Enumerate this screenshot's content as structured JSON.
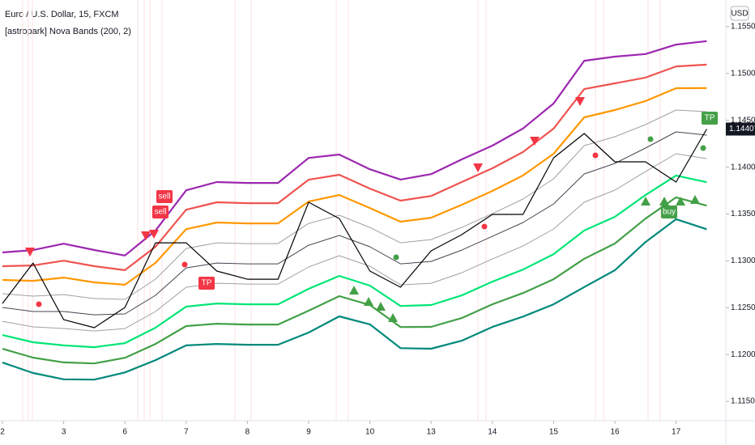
{
  "chart_data": {
    "type": "line",
    "title": "Euro / U.S. Dollar, 15, FXCM",
    "subtitle": "[astropark] Nova Bands (200, 2)",
    "currency": "USD",
    "last_price": 1.14407,
    "grid": false,
    "categories": [
      "2",
      null,
      "3",
      null,
      "6",
      null,
      "7",
      null,
      "8",
      null,
      "9",
      null,
      "10",
      null,
      "13",
      null,
      "14",
      null,
      "15",
      null,
      "16",
      null,
      "17",
      null
    ],
    "ylim": [
      1.11293,
      1.15785
    ],
    "yticks": [
      {
        "value": 1.155,
        "label": "1.15500"
      },
      {
        "value": 1.15,
        "label": "1.15000"
      },
      {
        "value": 1.145,
        "label": "1.14500"
      },
      {
        "value": 1.14,
        "label": "1.14000"
      },
      {
        "value": 1.135,
        "label": "1.13500"
      },
      {
        "value": 1.13,
        "label": "1.13000"
      },
      {
        "value": 1.125,
        "label": "1.12500"
      },
      {
        "value": 1.12,
        "label": "1.12000"
      },
      {
        "value": 1.115,
        "label": "1.11500"
      }
    ],
    "series": [
      {
        "color": "#9c27b0",
        "values": [
          1.1309,
          1.13115,
          1.13183,
          1.13116,
          1.13057,
          1.13324,
          1.13753,
          1.13841,
          1.13832,
          1.13832,
          1.14099,
          1.14135,
          1.13978,
          1.13868,
          1.13926,
          1.14083,
          1.1423,
          1.14413,
          1.1468,
          1.15136,
          1.1518,
          1.15208,
          1.15309,
          1.15346
        ]
      },
      {
        "color": "#ef5350",
        "values": [
          1.12943,
          1.12951,
          1.13002,
          1.12943,
          1.12901,
          1.13151,
          1.13546,
          1.13625,
          1.13616,
          1.13616,
          1.13866,
          1.13919,
          1.13771,
          1.13643,
          1.13693,
          1.13841,
          1.13988,
          1.14162,
          1.14412,
          1.14834,
          1.14895,
          1.14957,
          1.15076,
          1.15095
        ]
      },
      {
        "color": "#ff9800",
        "values": [
          1.12796,
          1.12787,
          1.12821,
          1.1277,
          1.12745,
          1.12978,
          1.13339,
          1.13409,
          1.134,
          1.134,
          1.13633,
          1.13703,
          1.13564,
          1.13418,
          1.1346,
          1.13599,
          1.13746,
          1.13911,
          1.14144,
          1.14532,
          1.1461,
          1.14706,
          1.14843,
          1.14844
        ]
      },
      {
        "color": "#a0a0a0",
        "values": [
          1.12649,
          1.12623,
          1.1264,
          1.12597,
          1.12589,
          1.12805,
          1.13132,
          1.13193,
          1.13184,
          1.13184,
          1.134,
          1.13487,
          1.13357,
          1.13193,
          1.13227,
          1.13357,
          1.13504,
          1.1366,
          1.13876,
          1.1423,
          1.14325,
          1.14455,
          1.1461,
          1.14593
        ]
      },
      {
        "color": "#434651",
        "values": [
          1.12502,
          1.12459,
          1.12459,
          1.12424,
          1.12433,
          1.12632,
          1.12925,
          1.12977,
          1.12968,
          1.12968,
          1.13167,
          1.13271,
          1.1315,
          1.12968,
          1.12994,
          1.13115,
          1.13262,
          1.13409,
          1.13608,
          1.13928,
          1.1404,
          1.14204,
          1.14377,
          1.14342
        ]
      },
      {
        "color": "#a0a0a0",
        "values": [
          1.12355,
          1.12295,
          1.12278,
          1.12251,
          1.12277,
          1.12459,
          1.12718,
          1.12761,
          1.12752,
          1.12752,
          1.12934,
          1.13055,
          1.12943,
          1.12743,
          1.12761,
          1.12873,
          1.1302,
          1.13158,
          1.1334,
          1.13626,
          1.13755,
          1.13953,
          1.14144,
          1.14091
        ]
      },
      {
        "color": "#00e676",
        "values": [
          1.12208,
          1.12131,
          1.12097,
          1.12078,
          1.12121,
          1.12286,
          1.12511,
          1.12545,
          1.12536,
          1.12536,
          1.12701,
          1.12839,
          1.12736,
          1.12518,
          1.12528,
          1.12631,
          1.12778,
          1.12907,
          1.13072,
          1.13324,
          1.1347,
          1.13702,
          1.13911,
          1.1384
        ]
      },
      {
        "color": "#43a047",
        "values": [
          1.12061,
          1.11967,
          1.11916,
          1.11905,
          1.11965,
          1.12113,
          1.12304,
          1.12329,
          1.1232,
          1.1232,
          1.12468,
          1.12623,
          1.12529,
          1.12293,
          1.12295,
          1.12389,
          1.12536,
          1.12656,
          1.12804,
          1.13022,
          1.13185,
          1.13451,
          1.13678,
          1.13589
        ]
      },
      {
        "color": "#00897b",
        "values": [
          1.11914,
          1.11803,
          1.11735,
          1.11732,
          1.11809,
          1.1194,
          1.12097,
          1.12113,
          1.12104,
          1.12104,
          1.12235,
          1.12407,
          1.12322,
          1.12068,
          1.12062,
          1.12147,
          1.12294,
          1.12405,
          1.12536,
          1.1272,
          1.129,
          1.132,
          1.13445,
          1.13338
        ]
      },
      {
        "color": "#000000",
        "values": [
          1.12545,
          1.12977,
          1.12372,
          1.12286,
          1.12502,
          1.13193,
          1.13193,
          1.12891,
          1.12804,
          1.12804,
          1.13625,
          1.13452,
          1.12891,
          1.12718,
          1.13107,
          1.1328,
          1.13496,
          1.13496,
          1.141,
          1.1436,
          1.14057,
          1.14057,
          1.13841,
          1.14407
        ]
      }
    ],
    "signals": [
      "sell",
      "sell",
      "TP",
      "buy",
      "TP"
    ]
  }
}
